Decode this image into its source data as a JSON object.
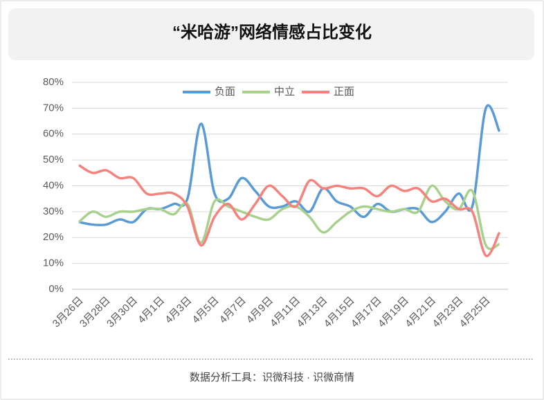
{
  "chart_data": {
    "type": "line",
    "title": "“米哈游”网络情感占比变化",
    "footer": "数据分析工具：识微科技 · 识微商情",
    "categories": [
      "3月26日",
      null,
      "3月28日",
      null,
      "3月30日",
      null,
      "4月1日",
      null,
      "4月3日",
      null,
      "4月5日",
      null,
      "4月7日",
      null,
      "4月9日",
      null,
      "4月11日",
      null,
      "4月13日",
      null,
      "4月15日",
      null,
      "4月17日",
      null,
      "4月19日",
      null,
      "4月21日",
      null,
      "4月23日",
      null,
      "4月25日",
      null
    ],
    "series": [
      {
        "name": "负面",
        "color": "#5b9bd5",
        "values": [
          26,
          25,
          25,
          27,
          26,
          31,
          31,
          33,
          35,
          64,
          37,
          35,
          43,
          38,
          32,
          32,
          34,
          30,
          39,
          34,
          32,
          28,
          33,
          30,
          31,
          31,
          26,
          30,
          37,
          32,
          70,
          61
        ]
      },
      {
        "name": "中立",
        "color": "#a9d18e",
        "values": [
          26,
          30,
          28,
          30,
          30,
          31,
          31,
          29,
          33,
          18,
          34,
          32,
          30,
          28,
          27,
          31,
          32,
          28,
          22,
          26,
          30,
          32,
          31,
          30,
          31,
          30,
          40,
          34,
          31,
          38,
          17,
          17.5
        ]
      },
      {
        "name": "正面",
        "color": "#f4837d",
        "values": [
          48,
          45,
          46,
          43,
          43,
          37,
          37,
          37,
          32,
          17,
          28,
          33,
          27,
          33,
          40,
          36,
          32,
          42,
          39,
          40,
          39,
          39,
          36,
          40,
          38,
          39,
          34,
          35,
          31,
          30,
          13,
          22
        ]
      }
    ],
    "ylim": [
      0,
      80
    ],
    "yticks": [
      {
        "value": 0,
        "label": "0%"
      },
      {
        "value": 10,
        "label": "10%"
      },
      {
        "value": 20,
        "label": "20%"
      },
      {
        "value": 30,
        "label": "30%"
      },
      {
        "value": 40,
        "label": "40%"
      },
      {
        "value": 50,
        "label": "50%"
      },
      {
        "value": 60,
        "label": "60%"
      },
      {
        "value": 70,
        "label": "70%"
      },
      {
        "value": 80,
        "label": "80%"
      }
    ],
    "grid": true,
    "legend": "top"
  }
}
